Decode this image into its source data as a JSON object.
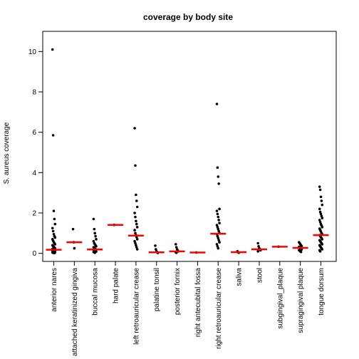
{
  "chart_data": {
    "type": "scatter",
    "title": "coverage by body site",
    "xlabel": "",
    "ylabel": "S. aureus coverage",
    "ylim": [
      -0.4,
      11.0
    ],
    "yticks": [
      "0",
      "2",
      "4",
      "6",
      "8",
      "10"
    ],
    "ytick_values": [
      0,
      2,
      4,
      6,
      8,
      10
    ],
    "grid": false,
    "legend": "none",
    "point_color": "#000000",
    "median_color": "#ff0000",
    "categories": [
      "anterior nares",
      "attached keratinized gingiva",
      "buccal mucosa",
      "hard palate",
      "left retroauricular crease",
      "palatine tonsil",
      "posterior fornix",
      "right antecubital fossa",
      "right retroauricular crease",
      "saliva",
      "stool",
      "subgingival_plaque",
      "supragingival plaque",
      "tongue dorsum"
    ],
    "medians": [
      0.18,
      0.55,
      0.19,
      1.41,
      0.88,
      0.05,
      0.1,
      0.04,
      0.97,
      0.06,
      0.2,
      0.33,
      0.27,
      0.9
    ],
    "points": [
      [
        10.1,
        5.85,
        2.1,
        1.7,
        1.45,
        1.25,
        1.1,
        0.95,
        0.85,
        0.78,
        0.7,
        0.62,
        0.55,
        0.5,
        0.45,
        0.4,
        0.36,
        0.32,
        0.28,
        0.25,
        0.22,
        0.2,
        0.18,
        0.16,
        0.14,
        0.12,
        0.1,
        0.08,
        0.06,
        0.05,
        0.04,
        0.03,
        0.02,
        0.01
      ],
      [
        1.2,
        0.55,
        0.25
      ],
      [
        1.7,
        1.2,
        1.0,
        0.85,
        0.7,
        0.6,
        0.5,
        0.45,
        0.4,
        0.35,
        0.3,
        0.27,
        0.24,
        0.21,
        0.19,
        0.17,
        0.15,
        0.13,
        0.11,
        0.09,
        0.07,
        0.05,
        0.03
      ],
      [
        1.41
      ],
      [
        6.2,
        4.35,
        2.9,
        2.6,
        2.3,
        2.0,
        1.8,
        1.6,
        1.45,
        1.3,
        1.15,
        1.0,
        0.9,
        0.8,
        0.7,
        0.6,
        0.5,
        0.4,
        0.3,
        0.2
      ],
      [
        0.38,
        0.2,
        0.1,
        0.05,
        0.02
      ],
      [
        0.45,
        0.3,
        0.2,
        0.15,
        0.1,
        0.06,
        0.03
      ],
      [
        0.04
      ],
      [
        7.4,
        4.25,
        3.8,
        3.45,
        2.2,
        2.1,
        1.95,
        1.8,
        1.65,
        1.5,
        1.4,
        1.3,
        1.2,
        1.1,
        1.0,
        0.95,
        0.85,
        0.75,
        0.65,
        0.55,
        0.45,
        0.35,
        0.25
      ],
      [
        0.1,
        0.06,
        0.03
      ],
      [
        0.5,
        0.35,
        0.25,
        0.2,
        0.15,
        0.1
      ],
      [
        0.33
      ],
      [
        0.55,
        0.5,
        0.45,
        0.4,
        0.36,
        0.32,
        0.28,
        0.25,
        0.22,
        0.19,
        0.16,
        0.13,
        0.1,
        0.07
      ],
      [
        3.3,
        3.15,
        2.8,
        2.6,
        2.4,
        2.2,
        2.05,
        1.95,
        1.85,
        1.75,
        1.65,
        1.55,
        1.45,
        1.38,
        1.3,
        1.22,
        1.15,
        1.08,
        1.0,
        0.95,
        0.9,
        0.85,
        0.8,
        0.75,
        0.7,
        0.65,
        0.6,
        0.55,
        0.5,
        0.45,
        0.4,
        0.35,
        0.3,
        0.25,
        0.2,
        0.15,
        0.1
      ]
    ]
  }
}
